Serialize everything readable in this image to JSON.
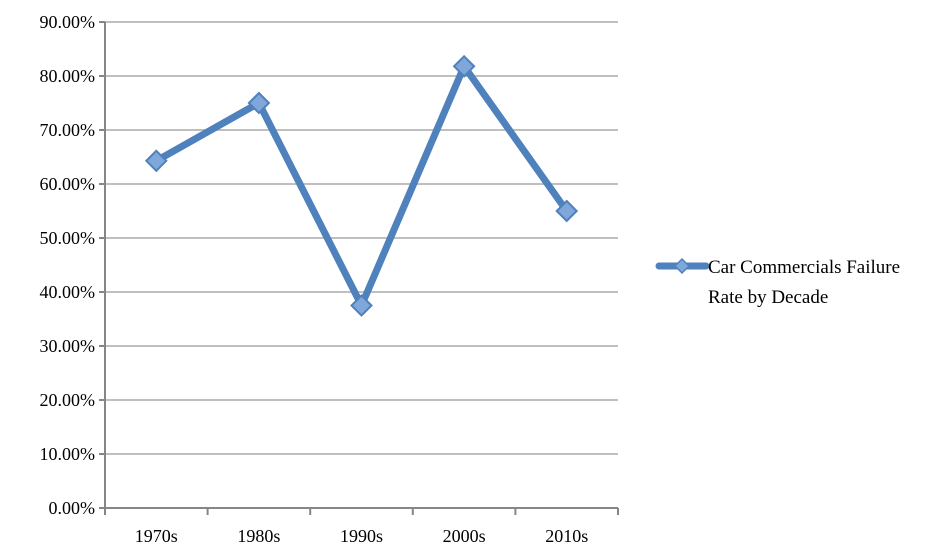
{
  "chart_data": {
    "type": "line",
    "title": "",
    "xlabel": "",
    "ylabel": "",
    "categories": [
      "1970s",
      "1980s",
      "1990s",
      "2000s",
      "2010s"
    ],
    "series": [
      {
        "name": "Car Commercials Failure Rate by Decade",
        "legend_lines": [
          "Car Commercials Failure",
          "Rate by Decade"
        ],
        "values": [
          0.643,
          0.75,
          0.375,
          0.818,
          0.55
        ],
        "color": "#4F81BD",
        "marker_color": "#7FA7DA"
      }
    ],
    "ylim": [
      0,
      0.9
    ],
    "yticks": [
      0,
      0.1,
      0.2,
      0.3,
      0.4,
      0.5,
      0.6,
      0.7,
      0.8,
      0.9
    ],
    "ytick_labels": [
      "0.00%",
      "10.00%",
      "20.00%",
      "30.00%",
      "40.00%",
      "50.00%",
      "60.00%",
      "70.00%",
      "80.00%",
      "90.00%"
    ],
    "grid": true,
    "legend_position": "right",
    "grid_color": "#BFBFBF",
    "axis_color": "#868686"
  }
}
